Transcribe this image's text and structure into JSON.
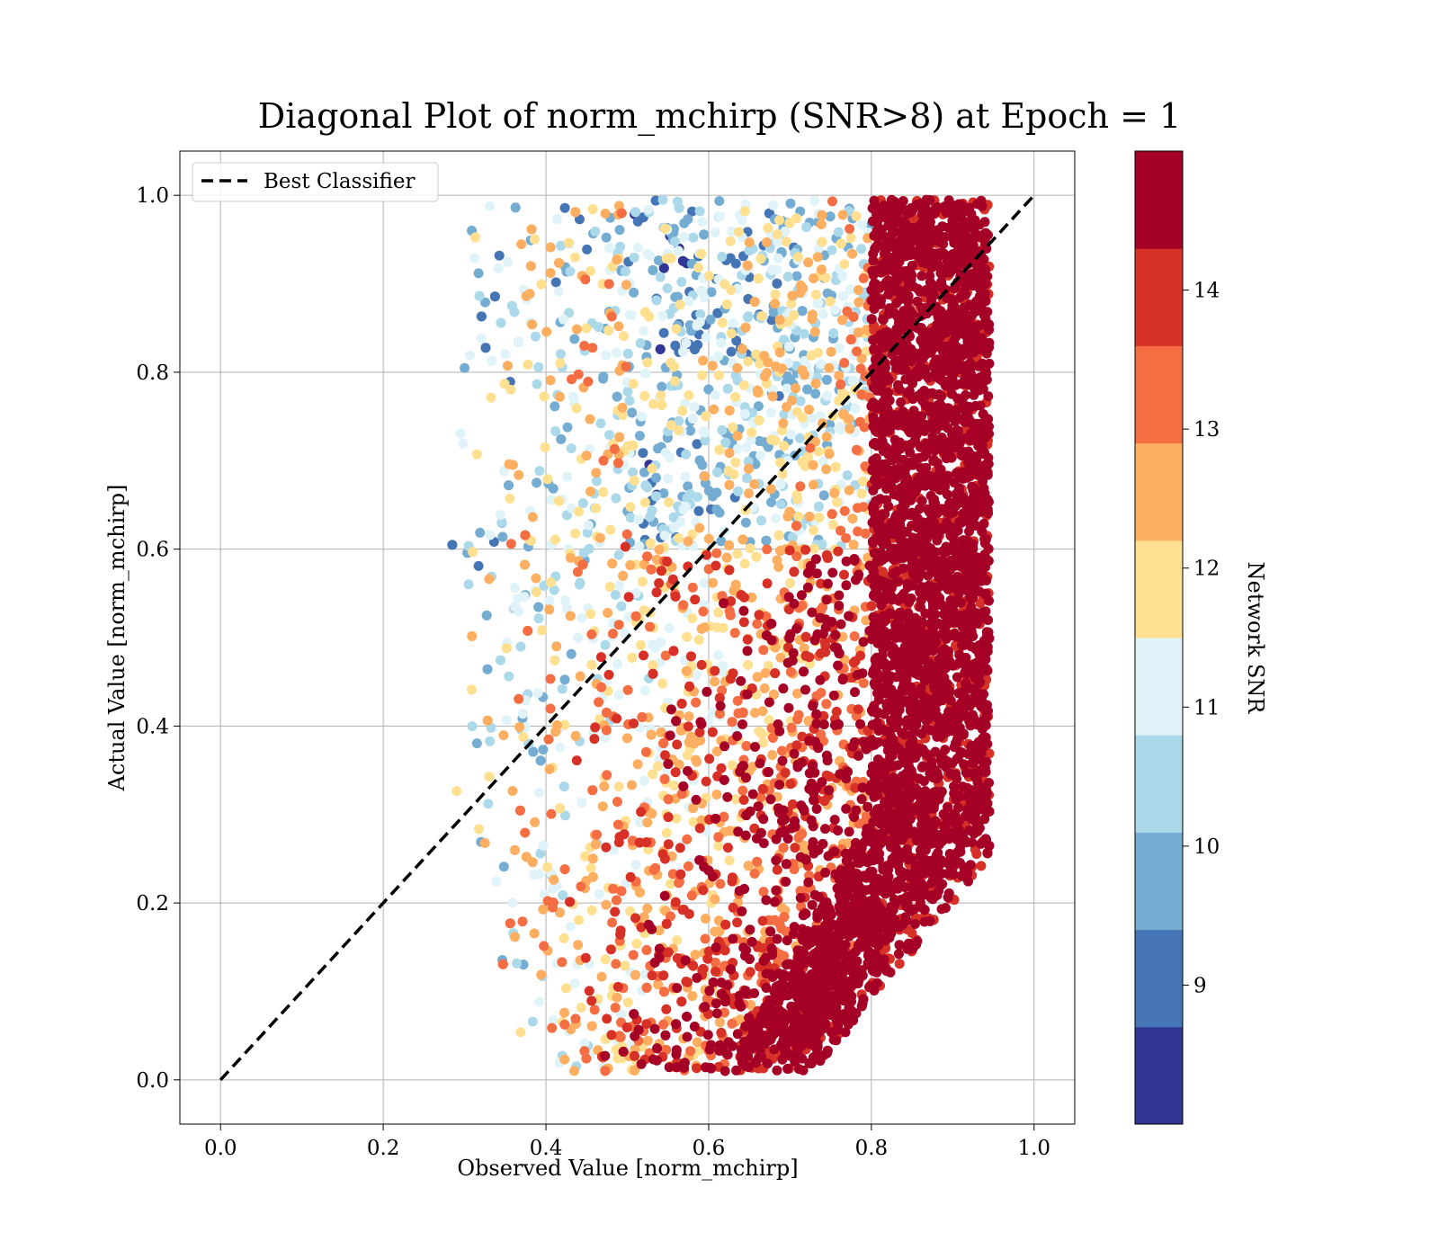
{
  "chart_data": {
    "type": "scatter",
    "title": "Diagonal Plot of norm_mchirp (SNR>8) at Epoch = 1",
    "xlabel": "Observed Value [norm_mchirp]",
    "ylabel": "Actual Value [norm_mchirp]",
    "xlim": [
      -0.05,
      1.05
    ],
    "ylim": [
      -0.05,
      1.05
    ],
    "x_ticks": [
      0.0,
      0.2,
      0.4,
      0.6,
      0.8,
      1.0
    ],
    "x_tick_labels": [
      "0.0",
      "0.2",
      "0.4",
      "0.6",
      "0.8",
      "1.0"
    ],
    "y_ticks": [
      0.0,
      0.2,
      0.4,
      0.6,
      0.8,
      1.0
    ],
    "y_tick_labels": [
      "0.0",
      "0.2",
      "0.4",
      "0.6",
      "0.8",
      "1.0"
    ],
    "grid": true,
    "legend": {
      "position": "upper-left",
      "entries": [
        "Best Classifier"
      ]
    },
    "reference_line": {
      "name": "Best Classifier",
      "x": [
        0.0,
        1.0
      ],
      "y": [
        0.0,
        1.0
      ],
      "style": "dashed",
      "color": "#000000"
    },
    "colorbar": {
      "label": "Network SNR",
      "range": [
        8,
        15
      ],
      "ticks": [
        9,
        10,
        11,
        12,
        13,
        14
      ],
      "tick_labels": [
        "9",
        "10",
        "11",
        "12",
        "13",
        "14"
      ],
      "colors": [
        "#313695",
        "#4575b4",
        "#74add1",
        "#abd9e9",
        "#e0f3f8",
        "#fee090",
        "#fdae61",
        "#f46d43",
        "#d73027",
        "#a50026"
      ]
    },
    "scatter_density_region": {
      "x_range": [
        0.25,
        0.95
      ],
      "y_range": [
        0.0,
        1.0
      ],
      "note_x_min_by_y": [
        [
          0.0,
          0.4
        ],
        [
          0.1,
          0.33
        ],
        [
          0.3,
          0.28
        ],
        [
          0.6,
          0.27
        ],
        [
          0.9,
          0.27
        ],
        [
          1.0,
          0.3
        ]
      ]
    }
  }
}
